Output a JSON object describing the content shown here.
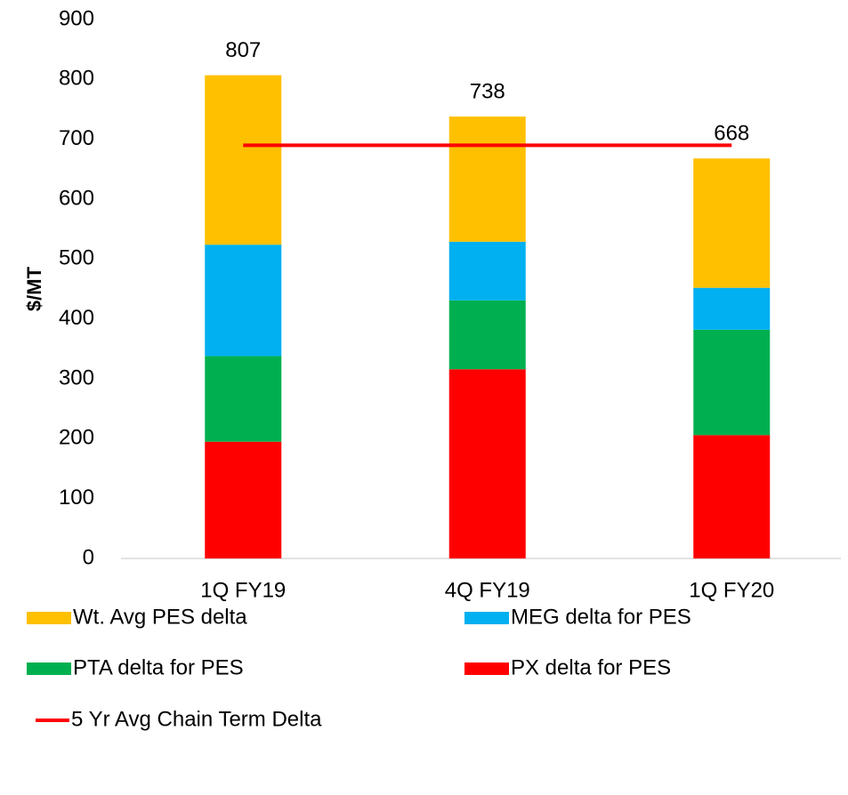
{
  "chart_data": {
    "type": "stacked_bar_line",
    "ylabel": "$/MT",
    "categories": [
      "1Q FY19",
      "4Q FY19",
      "1Q FY20"
    ],
    "series": [
      {
        "name": "PX delta for PES",
        "color": "#ff0000",
        "values": [
          195,
          316,
          206
        ]
      },
      {
        "name": "PTA delta for PES",
        "color": "#00b050",
        "values": [
          143,
          115,
          176
        ]
      },
      {
        "name": "MEG delta for PES",
        "color": "#00b0f0",
        "values": [
          186,
          98,
          70
        ]
      },
      {
        "name": "Wt. Avg PES delta",
        "color": "#ffc000",
        "values": [
          283,
          209,
          216
        ]
      },
      {
        "name": "5 Yr Avg Chain Term Delta",
        "color": "#ff0000",
        "type": "line",
        "values": [
          690,
          690,
          690
        ]
      }
    ],
    "totals": [
      807,
      738,
      668
    ],
    "ylim": [
      0,
      900
    ],
    "yticks": [
      0,
      100,
      200,
      300,
      400,
      500,
      600,
      700,
      800,
      900
    ]
  }
}
